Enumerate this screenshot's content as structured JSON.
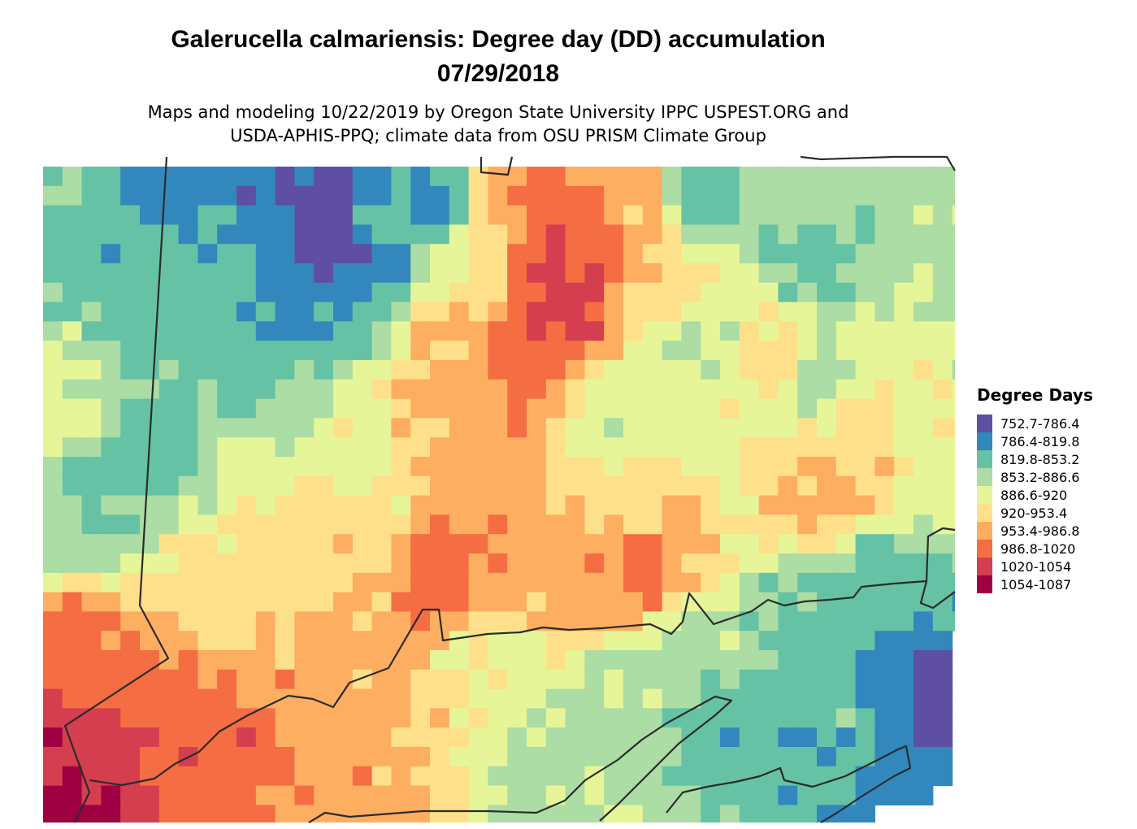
{
  "map": {
    "title_line1": "Galerucella calmariensis: Degree day (DD) accumulation",
    "title_line2": "07/29/2018",
    "subtitle_line1": "Maps and modeling 10/22/2019 by Oregon State University IPPC USPEST.ORG and",
    "subtitle_line2": "USDA-APHIS-PPQ; climate data from OSU PRISM Climate Group"
  },
  "legend": {
    "title": "Degree Days",
    "items": [
      {
        "label": "752.7-786.4",
        "color": "#5E4FA2"
      },
      {
        "label": "786.4-819.8",
        "color": "#3288BD"
      },
      {
        "label": "819.8-853.2",
        "color": "#66C2A5"
      },
      {
        "label": "853.2-886.6",
        "color": "#ABDDA4"
      },
      {
        "label": "886.6-920",
        "color": "#E6F598"
      },
      {
        "label": "920-953.4",
        "color": "#FEE08B"
      },
      {
        "label": "953.4-986.8",
        "color": "#FDAE61"
      },
      {
        "label": "986.8-1020",
        "color": "#F46D43"
      },
      {
        "label": "1020-1054",
        "color": "#D53E4F"
      },
      {
        "label": "1054-1087",
        "color": "#9E0142"
      }
    ]
  }
}
